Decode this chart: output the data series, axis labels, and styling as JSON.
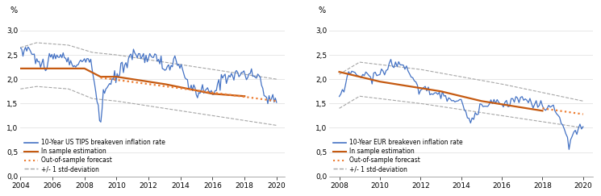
{
  "left": {
    "title_ylabel": "%",
    "xlim": [
      2004,
      2020.5
    ],
    "ylim": [
      0.0,
      3.2
    ],
    "yticks": [
      0.0,
      0.5,
      1.0,
      1.5,
      2.0,
      2.5,
      3.0
    ],
    "xticks": [
      2004,
      2006,
      2008,
      2010,
      2012,
      2014,
      2016,
      2018,
      2020
    ],
    "legend_labels": [
      "10-Year US TIPS breakeven inflation rate",
      "In sample estimation",
      "Out-of-sample forecast",
      "+/- 1 std-deviation"
    ],
    "blue_color": "#4472C4",
    "orange_color": "#C55A11",
    "orange_dot_color": "#ED7D31",
    "gray_color": "#A6A6A6"
  },
  "right": {
    "title_ylabel": "%",
    "xlim": [
      2007.5,
      2020.5
    ],
    "ylim": [
      0.0,
      3.2
    ],
    "yticks": [
      0.0,
      0.5,
      1.0,
      1.5,
      2.0,
      2.5,
      3.0
    ],
    "xticks": [
      2008,
      2010,
      2012,
      2014,
      2016,
      2018,
      2020
    ],
    "legend_labels": [
      "10-Year EUR breakeven inflation rate",
      "In sample estimation",
      "Out-of-sample forecast",
      "+/- 1 std-deviation"
    ],
    "blue_color": "#4472C4",
    "orange_color": "#C55A11",
    "orange_dot_color": "#ED7D31",
    "gray_color": "#A6A6A6"
  }
}
